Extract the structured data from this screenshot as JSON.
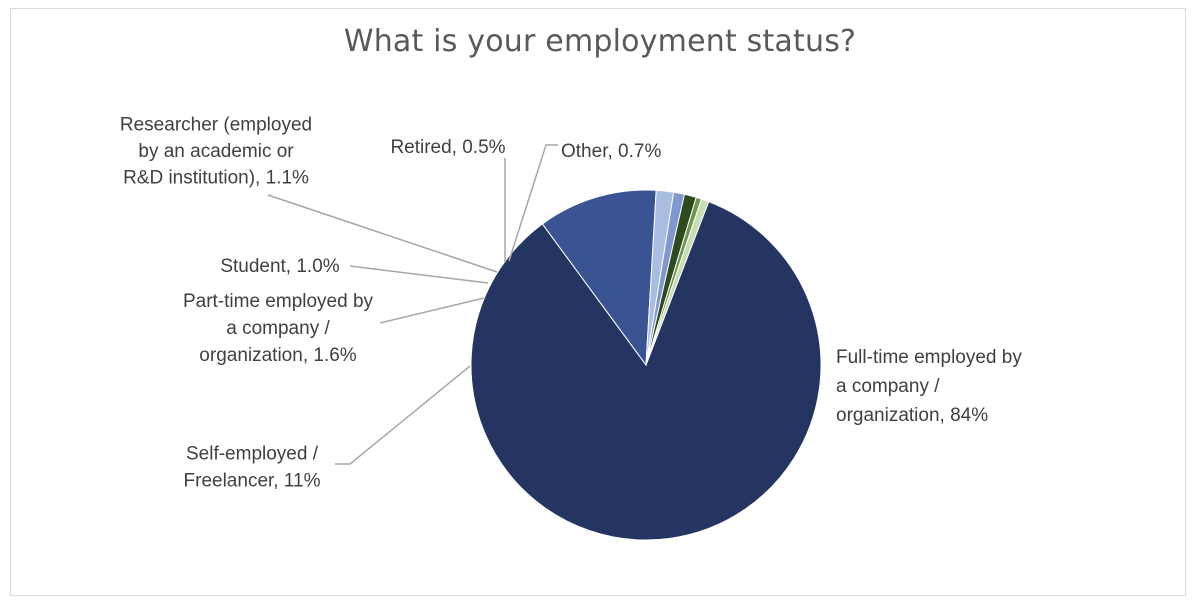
{
  "chart_data": {
    "type": "pie",
    "title": "What is your employment status?",
    "slices": [
      {
        "label": "Full-time employed by a company / organization",
        "label_lines": [
          "Full-time employed by",
          "a company /",
          "organization, 84%"
        ],
        "value": 84.0,
        "display": "84%",
        "color": "#253561"
      },
      {
        "label": "Self-employed / Freelancer",
        "label_lines": [
          "Self-employed /",
          "Freelancer, 11%"
        ],
        "value": 11.0,
        "display": "11%",
        "color": "#3a5493"
      },
      {
        "label": "Part-time employed by a company / organization",
        "label_lines": [
          "Part-time employed by",
          "a company /",
          "organization, 1.6%"
        ],
        "value": 1.6,
        "display": "1.6%",
        "color": "#a9bce2"
      },
      {
        "label": "Student",
        "label_lines": [
          "Student, 1.0%"
        ],
        "value": 1.0,
        "display": "1.0%",
        "color": "#7f98cf"
      },
      {
        "label": "Researcher (employed by an academic or R&D institution)",
        "label_lines": [
          "Researcher (employed",
          "by an academic or",
          "R&D institution), 1.1%"
        ],
        "value": 1.1,
        "display": "1.1%",
        "color": "#2e4a1e"
      },
      {
        "label": "Retired",
        "label_lines": [
          "Retired, 0.5%"
        ],
        "value": 0.5,
        "display": "0.5%",
        "color": "#6f9650"
      },
      {
        "label": "Other",
        "label_lines": [
          "Other, 0.7%"
        ],
        "value": 0.7,
        "display": "0.7%",
        "color": "#c8ddb5"
      }
    ]
  }
}
